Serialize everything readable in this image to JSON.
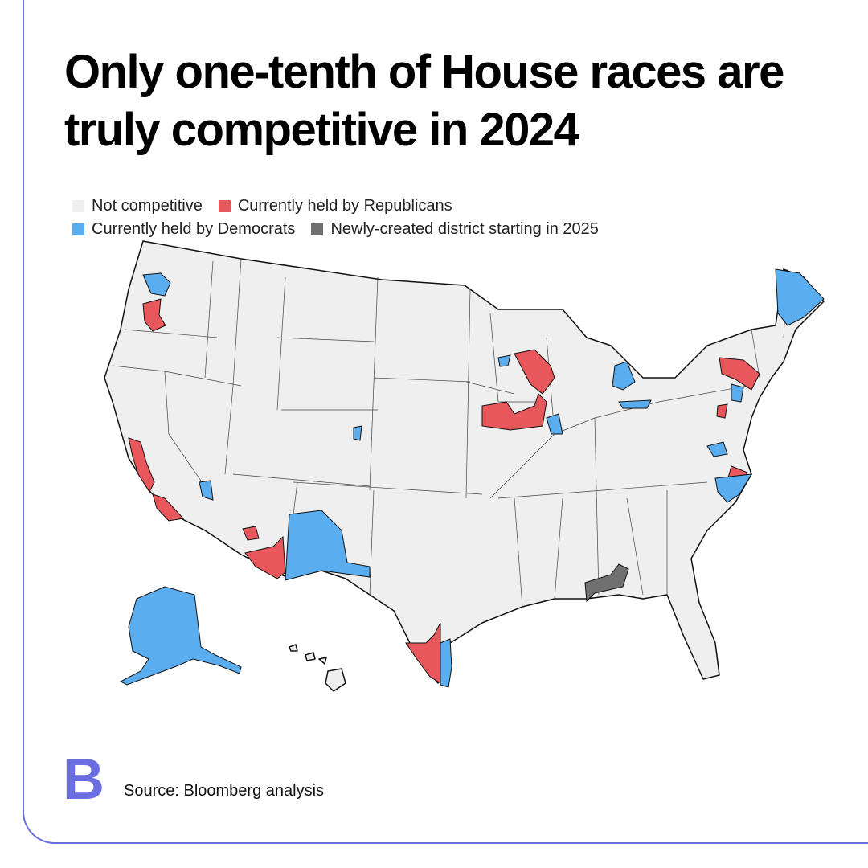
{
  "title": "Only one-tenth of House races are truly competitive in 2024",
  "legend": [
    {
      "label": "Not competitive",
      "color": "#efefef"
    },
    {
      "label": "Currently held by Republicans",
      "color": "#e8575c"
    },
    {
      "label": "Currently held by Democrats",
      "color": "#5aaef0"
    },
    {
      "label": "Newly-created district starting in 2025",
      "color": "#707070"
    }
  ],
  "logo": "B",
  "source": "Source: Bloomberg analysis"
}
